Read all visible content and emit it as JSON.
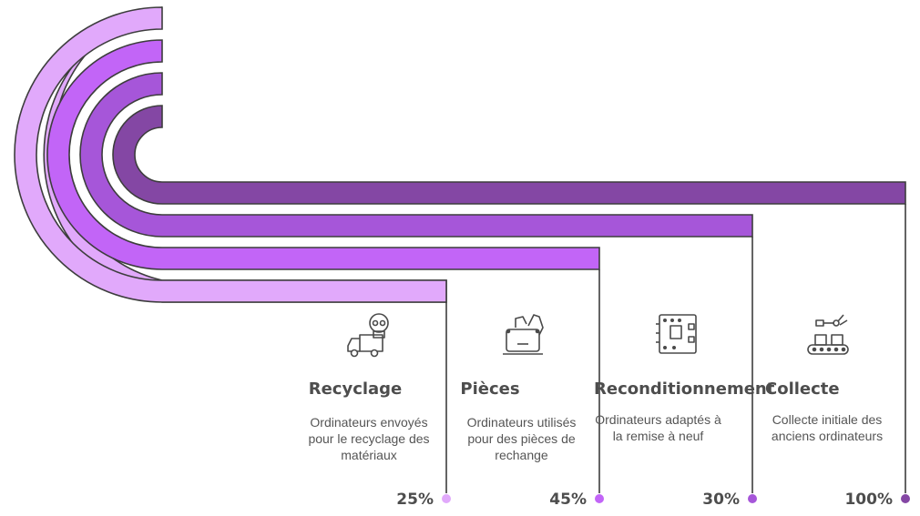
{
  "stages": [
    {
      "title": "Recyclage",
      "description": "Ordinateurs envoyés pour le recyclage des matériaux",
      "percent": "25%",
      "color": "#e1a9fb",
      "icon": "truck-skull-icon"
    },
    {
      "title": "Pièces",
      "description": "Ordinateurs utilisés pour des pièces de rechange",
      "percent": "45%",
      "color": "#c265f7",
      "icon": "laptop-hand-icon"
    },
    {
      "title": "Reconditionnement",
      "description": "Ordinateurs adaptés à la remise à neuf",
      "percent": "30%",
      "color": "#a656d9",
      "icon": "circuit-board-icon"
    },
    {
      "title": "Collecte",
      "description": "Collecte initiale des anciens ordinateurs",
      "percent": "100%",
      "color": "#8447a4",
      "icon": "conveyor-robot-icon"
    }
  ]
}
